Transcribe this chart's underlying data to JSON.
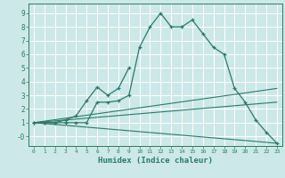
{
  "xlabel": "Humidex (Indice chaleur)",
  "bg_color": "#cde8e8",
  "grid_color": "#ffffff",
  "line_color": "#2a7a6a",
  "xlim": [
    -0.5,
    23.5
  ],
  "ylim": [
    -0.7,
    9.7
  ],
  "xticks": [
    0,
    1,
    2,
    3,
    4,
    5,
    6,
    7,
    8,
    9,
    10,
    11,
    12,
    13,
    14,
    15,
    16,
    17,
    18,
    19,
    20,
    21,
    22,
    23
  ],
  "yticks": [
    0,
    1,
    2,
    3,
    4,
    5,
    6,
    7,
    8,
    9
  ],
  "ytick_labels": [
    "-0",
    "1",
    "2",
    "3",
    "4",
    "5",
    "6",
    "7",
    "8",
    "9"
  ],
  "curve1_x": [
    0,
    1,
    2,
    3,
    4,
    5,
    6,
    7,
    8,
    9,
    10,
    11,
    12,
    13,
    14,
    15,
    16,
    17,
    18,
    19,
    20,
    21,
    22,
    23
  ],
  "curve1_y": [
    1.0,
    1.0,
    1.0,
    1.0,
    1.0,
    1.0,
    2.5,
    2.5,
    2.6,
    3.0,
    6.5,
    8.0,
    9.0,
    8.0,
    8.0,
    8.5,
    7.5,
    6.5,
    6.0,
    3.5,
    2.5,
    1.2,
    0.3,
    -0.5
  ],
  "curve2_x": [
    0,
    1,
    2,
    3,
    4,
    5,
    6,
    7,
    8,
    9
  ],
  "curve2_y": [
    1.0,
    1.0,
    1.0,
    1.2,
    1.5,
    2.6,
    3.6,
    3.0,
    3.5,
    5.0
  ],
  "line1_x": [
    0,
    23
  ],
  "line1_y": [
    1.0,
    3.5
  ],
  "line2_x": [
    0,
    23
  ],
  "line2_y": [
    1.0,
    2.5
  ],
  "line3_x": [
    0,
    23
  ],
  "line3_y": [
    1.0,
    -0.5
  ]
}
